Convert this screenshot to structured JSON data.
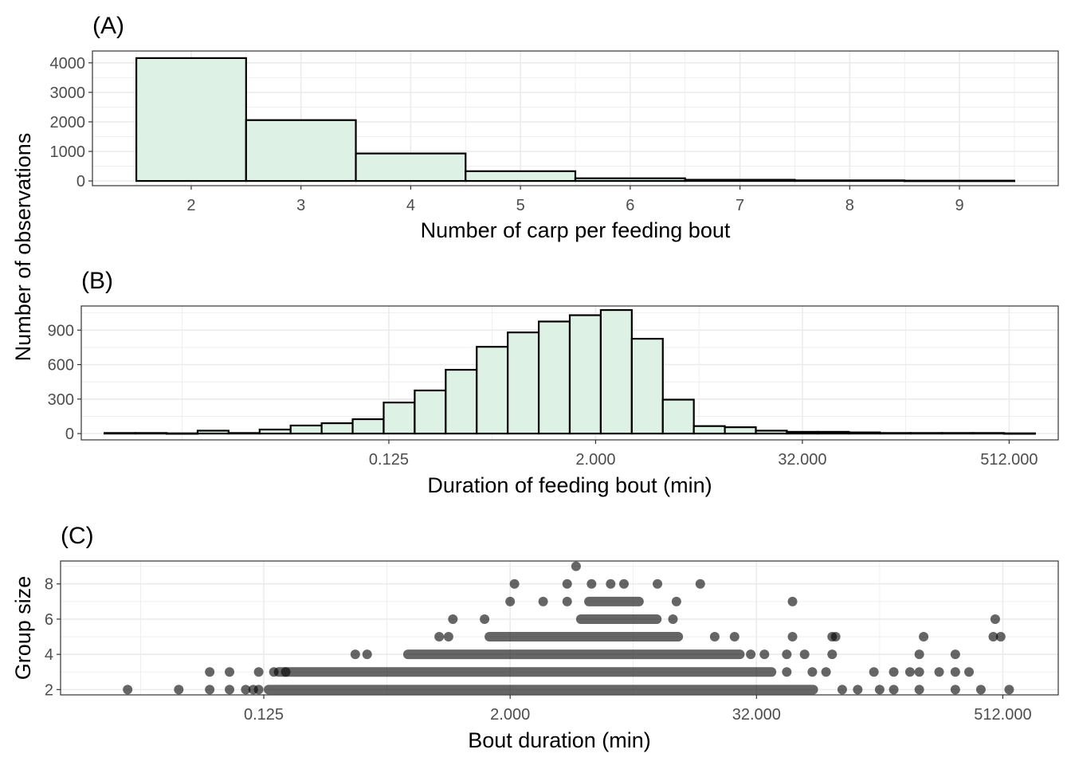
{
  "shared_ylabel": "Number of observations",
  "colors": {
    "fill": "#DDF2E5",
    "stroke": "#000000",
    "grid": "#EBEBEB",
    "panel_border": "#333333",
    "tick_text": "#4D4D4D",
    "point": "#000000"
  },
  "chart_data": [
    {
      "panel": "(A)",
      "type": "bar",
      "xlabel": "Number of carp per feeding bout",
      "ylabel": "Number of observations",
      "categories": [
        "2",
        "3",
        "4",
        "5",
        "6",
        "7",
        "8",
        "9"
      ],
      "values": [
        4160,
        2060,
        930,
        330,
        90,
        40,
        20,
        10
      ],
      "xlim": [
        1.1,
        9.9
      ],
      "ylim": [
        -160,
        4400
      ],
      "yticks": [
        "0",
        "1000",
        "2000",
        "3000",
        "4000"
      ],
      "ytick_values": [
        0,
        1000,
        2000,
        3000,
        4000
      ],
      "grid": true
    },
    {
      "panel": "(B)",
      "type": "bar",
      "xlabel": "Duration of feeding bout (min)",
      "ylabel": "Number of observations",
      "x_scale": "log2",
      "xticks": [
        "0.125",
        "2.000",
        "32.000",
        "512.000"
      ],
      "xtick_values": [
        0.125,
        2,
        32,
        512
      ],
      "bin_edges_log2": [
        -8.5,
        -7.9,
        -7.3,
        -6.7,
        -6.1,
        -5.5,
        -4.9,
        -4.3,
        -3.7,
        -3.1,
        -2.5,
        -1.9,
        -1.3,
        -0.7,
        -0.1,
        0.5,
        1.1,
        1.7,
        2.3,
        2.9,
        3.5,
        4.1,
        4.7,
        5.3,
        5.9,
        6.5,
        7.1,
        7.7,
        8.3,
        8.9,
        9.5
      ],
      "values": [
        5,
        5,
        2,
        25,
        5,
        35,
        70,
        90,
        125,
        270,
        375,
        555,
        755,
        880,
        975,
        1030,
        1075,
        825,
        295,
        65,
        55,
        25,
        15,
        15,
        10,
        5,
        5,
        5,
        5,
        2
      ],
      "ylim": [
        -55,
        1110
      ],
      "yticks": [
        "0",
        "300",
        "600",
        "900"
      ],
      "ytick_values": [
        0,
        300,
        600,
        900
      ],
      "grid": true
    },
    {
      "panel": "(C)",
      "type": "scatter",
      "xlabel": "Bout duration (min)",
      "ylabel": "Group size",
      "x_scale": "log2",
      "xticks": [
        "0.125",
        "2.000",
        "32.000",
        "512.000"
      ],
      "xtick_values": [
        0.125,
        2,
        32,
        512
      ],
      "ylim": [
        1.7,
        9.3
      ],
      "yticks": [
        "2",
        "4",
        "6",
        "8"
      ],
      "ytick_values": [
        2,
        4,
        6,
        8
      ],
      "point_alpha": 0.6,
      "bands": [
        {
          "y": 2,
          "from": 0.125,
          "to": 64
        },
        {
          "y": 3,
          "from": 0.14,
          "to": 40
        },
        {
          "y": 4,
          "from": 0.6,
          "to": 28
        },
        {
          "y": 5,
          "from": 1.5,
          "to": 14
        },
        {
          "y": 6,
          "from": 4.2,
          "to": 11
        },
        {
          "y": 7,
          "from": 4.6,
          "to": 9
        }
      ],
      "points": [
        [
          0.027,
          2
        ],
        [
          0.048,
          2
        ],
        [
          0.068,
          2
        ],
        [
          0.085,
          2
        ],
        [
          0.102,
          2
        ],
        [
          0.111,
          2
        ],
        [
          0.118,
          2
        ],
        [
          0.068,
          3
        ],
        [
          0.085,
          3
        ],
        [
          0.118,
          3
        ],
        [
          0.14,
          3
        ],
        [
          0.16,
          3
        ],
        [
          84,
          2
        ],
        [
          100,
          2
        ],
        [
          128,
          2
        ],
        [
          150,
          2
        ],
        [
          200,
          2
        ],
        [
          300,
          2
        ],
        [
          400,
          2
        ],
        [
          550,
          2
        ],
        [
          45,
          3
        ],
        [
          60,
          3
        ],
        [
          70,
          3
        ],
        [
          120,
          3
        ],
        [
          150,
          3
        ],
        [
          180,
          3
        ],
        [
          200,
          3
        ],
        [
          250,
          3
        ],
        [
          300,
          3
        ],
        [
          350,
          3
        ],
        [
          0.35,
          4
        ],
        [
          0.4,
          4
        ],
        [
          30,
          4
        ],
        [
          35,
          4
        ],
        [
          45,
          4
        ],
        [
          55,
          4
        ],
        [
          75,
          4
        ],
        [
          200,
          4
        ],
        [
          300,
          4
        ],
        [
          1.0,
          5
        ],
        [
          0.9,
          5
        ],
        [
          20,
          5
        ],
        [
          25,
          5
        ],
        [
          48,
          5
        ],
        [
          75,
          5
        ],
        [
          78,
          5
        ],
        [
          210,
          5
        ],
        [
          460,
          5
        ],
        [
          500,
          5
        ],
        [
          1.05,
          6
        ],
        [
          1.5,
          6
        ],
        [
          12.5,
          6
        ],
        [
          470,
          6
        ],
        [
          2.0,
          7
        ],
        [
          2.9,
          7
        ],
        [
          3.8,
          7
        ],
        [
          13,
          7
        ],
        [
          48,
          7
        ],
        [
          2.1,
          8
        ],
        [
          3.8,
          8
        ],
        [
          5.0,
          8
        ],
        [
          6.2,
          8
        ],
        [
          7.2,
          8
        ],
        [
          10.5,
          8
        ],
        [
          17,
          8
        ],
        [
          4.2,
          9
        ]
      ],
      "grid": true
    }
  ]
}
